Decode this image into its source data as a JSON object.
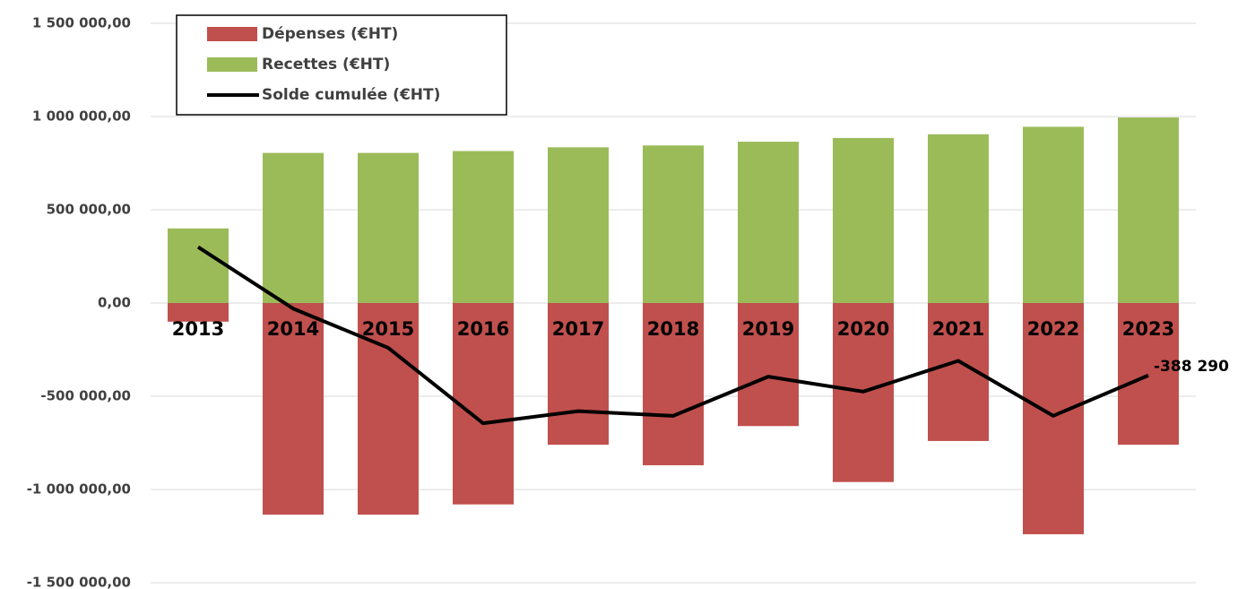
{
  "chart_data": {
    "type": "bar",
    "categories": [
      "2013",
      "2014",
      "2015",
      "2016",
      "2017",
      "2018",
      "2019",
      "2020",
      "2021",
      "2022",
      "2023"
    ],
    "series": [
      {
        "name": "Dépenses (€HT)",
        "type": "bar",
        "color": "#c0504d",
        "values": [
          -100000,
          -1135000,
          -1135000,
          -1080000,
          -760000,
          -870000,
          -660000,
          -960000,
          -740000,
          -1240000,
          -760000
        ]
      },
      {
        "name": "Recettes (€HT)",
        "type": "bar",
        "color": "#9bbb59",
        "values": [
          400000,
          805000,
          805000,
          815000,
          835000,
          845000,
          865000,
          885000,
          905000,
          945000,
          995000
        ]
      },
      {
        "name": "Solde cumulée (€HT)",
        "type": "line",
        "color": "#000000",
        "values": [
          300000,
          -30000,
          -240000,
          -645000,
          -580000,
          -605000,
          -395000,
          -475000,
          -310000,
          -605000,
          -388290
        ],
        "value_labels": [
          null,
          null,
          null,
          null,
          null,
          null,
          null,
          null,
          null,
          null,
          "-388 290"
        ]
      }
    ],
    "ylim": [
      -1500000,
      1500000
    ],
    "yticks": [
      {
        "value": 1500000,
        "label": "1 500 000,00"
      },
      {
        "value": 1000000,
        "label": "1 000 000,00"
      },
      {
        "value": 500000,
        "label": "500 000,00"
      },
      {
        "value": 0,
        "label": "0,00"
      },
      {
        "value": -500000,
        "label": "-500 000,00"
      },
      {
        "value": -1000000,
        "label": "-1 000 000,00"
      },
      {
        "value": -1500000,
        "label": "-1 500 000,00"
      }
    ],
    "grid": true,
    "legend": "top-left"
  }
}
